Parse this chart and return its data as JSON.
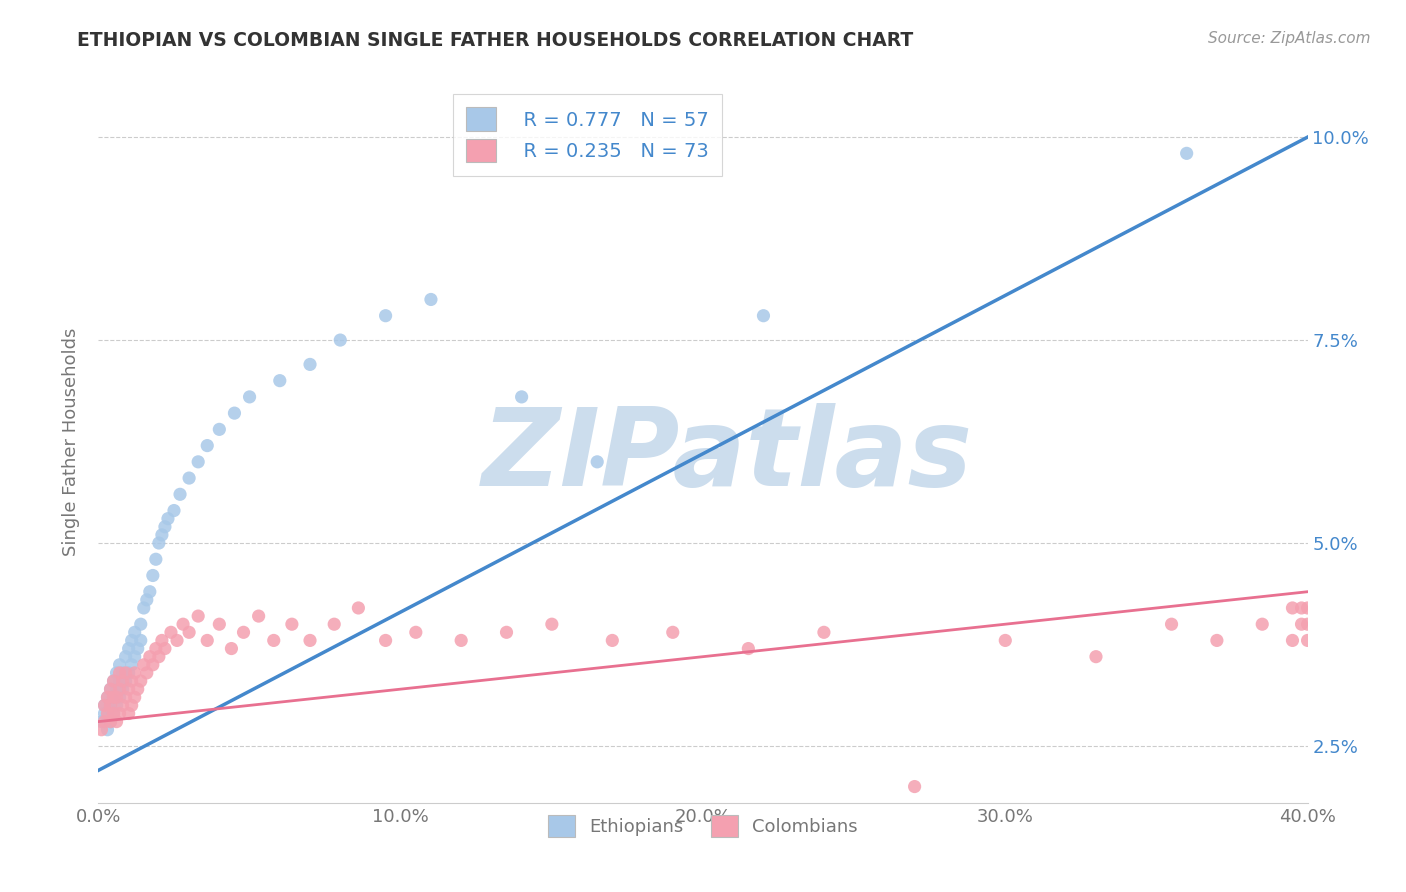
{
  "title": "ETHIOPIAN VS COLOMBIAN SINGLE FATHER HOUSEHOLDS CORRELATION CHART",
  "source": "Source: ZipAtlas.com",
  "xlabel_ethiopians": "Ethiopians",
  "xlabel_colombians": "Colombians",
  "ylabel": "Single Father Households",
  "x_min": 0.0,
  "x_max": 0.4,
  "y_min": 0.018,
  "y_max": 0.107,
  "x_ticks": [
    0.0,
    0.1,
    0.2,
    0.3,
    0.4
  ],
  "x_tick_labels": [
    "0.0%",
    "10.0%",
    "20.0%",
    "30.0%",
    "40.0%"
  ],
  "y_ticks": [
    0.025,
    0.05,
    0.075,
    0.1
  ],
  "y_tick_labels": [
    "2.5%",
    "5.0%",
    "7.5%",
    "10.0%"
  ],
  "ethiopian_color": "#a8c8e8",
  "colombian_color": "#f4a0b0",
  "ethiopian_line_color": "#4488cc",
  "colombian_line_color": "#e87090",
  "legend_R_ethiopian": "R = 0.777",
  "legend_N_ethiopian": "N = 57",
  "legend_R_colombian": "R = 0.235",
  "legend_N_colombian": "N = 73",
  "watermark": "ZIPatlas",
  "watermark_color": "#ccdded",
  "background_color": "#ffffff",
  "ethiopians_x": [
    0.001,
    0.002,
    0.002,
    0.003,
    0.003,
    0.003,
    0.004,
    0.004,
    0.004,
    0.005,
    0.005,
    0.005,
    0.006,
    0.006,
    0.006,
    0.007,
    0.007,
    0.007,
    0.008,
    0.008,
    0.009,
    0.009,
    0.01,
    0.01,
    0.011,
    0.011,
    0.012,
    0.012,
    0.013,
    0.014,
    0.014,
    0.015,
    0.016,
    0.017,
    0.018,
    0.019,
    0.02,
    0.021,
    0.022,
    0.023,
    0.025,
    0.027,
    0.03,
    0.033,
    0.036,
    0.04,
    0.045,
    0.05,
    0.06,
    0.07,
    0.08,
    0.095,
    0.11,
    0.14,
    0.165,
    0.22,
    0.36
  ],
  "ethiopians_y": [
    0.028,
    0.029,
    0.03,
    0.027,
    0.029,
    0.031,
    0.028,
    0.03,
    0.032,
    0.029,
    0.031,
    0.033,
    0.03,
    0.032,
    0.034,
    0.031,
    0.033,
    0.035,
    0.032,
    0.034,
    0.033,
    0.036,
    0.034,
    0.037,
    0.035,
    0.038,
    0.036,
    0.039,
    0.037,
    0.038,
    0.04,
    0.042,
    0.043,
    0.044,
    0.046,
    0.048,
    0.05,
    0.051,
    0.052,
    0.053,
    0.054,
    0.056,
    0.058,
    0.06,
    0.062,
    0.064,
    0.066,
    0.068,
    0.07,
    0.072,
    0.075,
    0.078,
    0.08,
    0.068,
    0.06,
    0.078,
    0.098
  ],
  "colombians_x": [
    0.001,
    0.002,
    0.002,
    0.003,
    0.003,
    0.004,
    0.004,
    0.004,
    0.005,
    0.005,
    0.005,
    0.006,
    0.006,
    0.007,
    0.007,
    0.007,
    0.008,
    0.008,
    0.009,
    0.009,
    0.01,
    0.01,
    0.011,
    0.011,
    0.012,
    0.012,
    0.013,
    0.014,
    0.015,
    0.016,
    0.017,
    0.018,
    0.019,
    0.02,
    0.021,
    0.022,
    0.024,
    0.026,
    0.028,
    0.03,
    0.033,
    0.036,
    0.04,
    0.044,
    0.048,
    0.053,
    0.058,
    0.064,
    0.07,
    0.078,
    0.086,
    0.095,
    0.105,
    0.12,
    0.135,
    0.15,
    0.17,
    0.19,
    0.215,
    0.24,
    0.27,
    0.3,
    0.33,
    0.355,
    0.37,
    0.385,
    0.395,
    0.398,
    0.4,
    0.4,
    0.4,
    0.398,
    0.395
  ],
  "colombians_y": [
    0.027,
    0.028,
    0.03,
    0.029,
    0.031,
    0.028,
    0.03,
    0.032,
    0.029,
    0.031,
    0.033,
    0.028,
    0.031,
    0.029,
    0.032,
    0.034,
    0.03,
    0.033,
    0.031,
    0.034,
    0.029,
    0.032,
    0.03,
    0.033,
    0.031,
    0.034,
    0.032,
    0.033,
    0.035,
    0.034,
    0.036,
    0.035,
    0.037,
    0.036,
    0.038,
    0.037,
    0.039,
    0.038,
    0.04,
    0.039,
    0.041,
    0.038,
    0.04,
    0.037,
    0.039,
    0.041,
    0.038,
    0.04,
    0.038,
    0.04,
    0.042,
    0.038,
    0.039,
    0.038,
    0.039,
    0.04,
    0.038,
    0.039,
    0.037,
    0.039,
    0.02,
    0.038,
    0.036,
    0.04,
    0.038,
    0.04,
    0.038,
    0.042,
    0.04,
    0.042,
    0.038,
    0.04,
    0.042
  ]
}
